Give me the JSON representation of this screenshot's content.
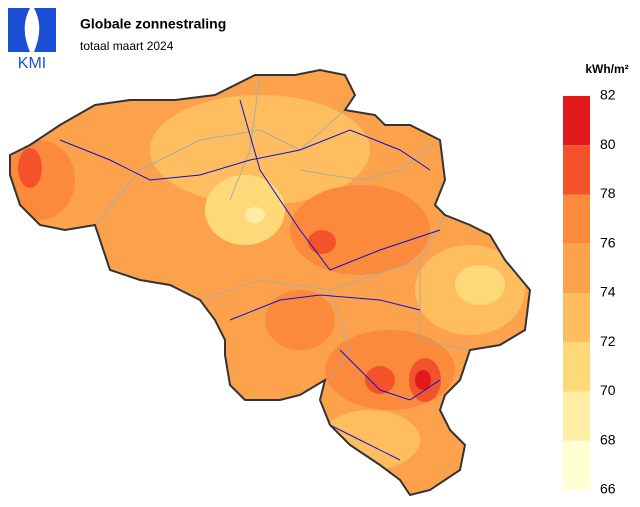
{
  "header": {
    "logo": "KMI",
    "title": "Globale zonnestraling",
    "subtitle": "totaal maart 2024"
  },
  "legend": {
    "unit": "kWh/m²",
    "ticks": [
      66,
      68,
      70,
      72,
      74,
      76,
      78,
      80,
      82
    ],
    "colors": [
      "#ffffd4",
      "#ffeda6",
      "#fed97a",
      "#febe5f",
      "#fda24c",
      "#fb8a3c",
      "#f4522b",
      "#e31a1c"
    ]
  }
}
